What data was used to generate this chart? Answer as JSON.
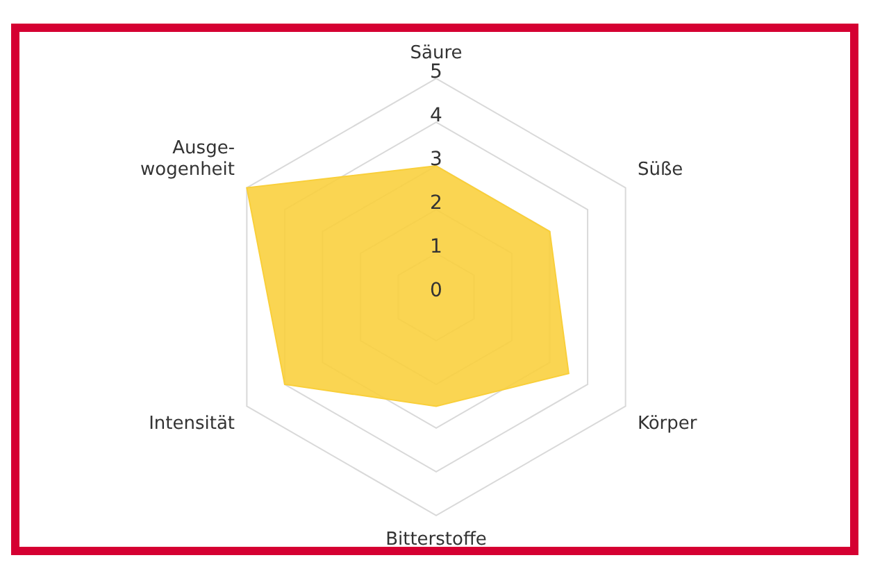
{
  "chart_data": {
    "type": "radar",
    "categories": [
      "Säure",
      "Süße",
      "Körper",
      "Bitterstoffe",
      "Intensität",
      "Ausge-\nwogenheit"
    ],
    "series": [
      {
        "color": "#f9cf3a",
        "values": [
          3,
          3,
          3.5,
          2.5,
          4,
          5
        ]
      }
    ],
    "ylim": [
      0,
      5
    ],
    "yticks": [
      0,
      1,
      2,
      3,
      4,
      5
    ],
    "grid": true,
    "legend": false
  }
}
